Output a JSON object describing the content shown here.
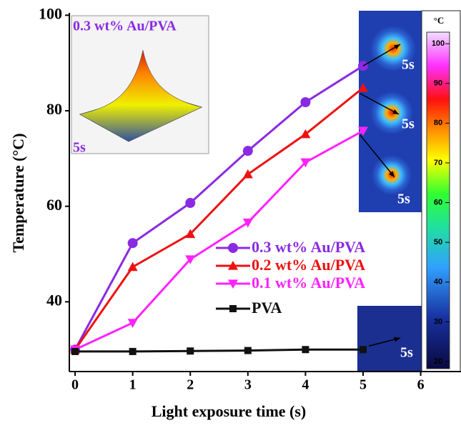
{
  "chart_data": {
    "type": "line",
    "xlabel": "Light exposure time (s)",
    "ylabel": "Temperature (°C)",
    "x": [
      0,
      1,
      2,
      3,
      4,
      5
    ],
    "xlim": [
      -0.1,
      6.7
    ],
    "xticks": [
      0,
      1,
      2,
      3,
      4,
      5,
      6
    ],
    "ylim": [
      25.4,
      100.5
    ],
    "yticks": [
      40,
      60,
      80,
      100
    ],
    "grid": false,
    "legend": "center-right",
    "series": [
      {
        "name": "0.3 wt% Au/PVA",
        "color": "#8a2be2",
        "marker": "circle",
        "values": [
          30,
          52.3,
          60.7,
          71.6,
          81.8,
          89.4
        ]
      },
      {
        "name": "0.2 wt% Au/PVA",
        "color": "#ee1111",
        "marker": "triangle-up",
        "values": [
          30,
          47.3,
          54.2,
          66.7,
          75.1,
          84.8
        ]
      },
      {
        "name": "0.1 wt% Au/PVA",
        "color": "#ff22ff",
        "marker": "triangle-down",
        "values": [
          30,
          35.6,
          48.9,
          56.6,
          69.2,
          75.8
        ]
      },
      {
        "name": "PVA",
        "color": "#111111",
        "marker": "square",
        "values": [
          29.6,
          29.6,
          29.7,
          29.8,
          30.0,
          30.0
        ]
      }
    ],
    "inset_title": "0.3 wt% Au/PVA",
    "inset_time": "5s",
    "image_labels": [
      "5s",
      "5s",
      "5s",
      "5s"
    ],
    "colorbar": {
      "label": "°C",
      "lim": [
        18.2,
        102.9
      ],
      "ticks": [
        20,
        30,
        40,
        50,
        60,
        70,
        80,
        90,
        100
      ]
    }
  }
}
